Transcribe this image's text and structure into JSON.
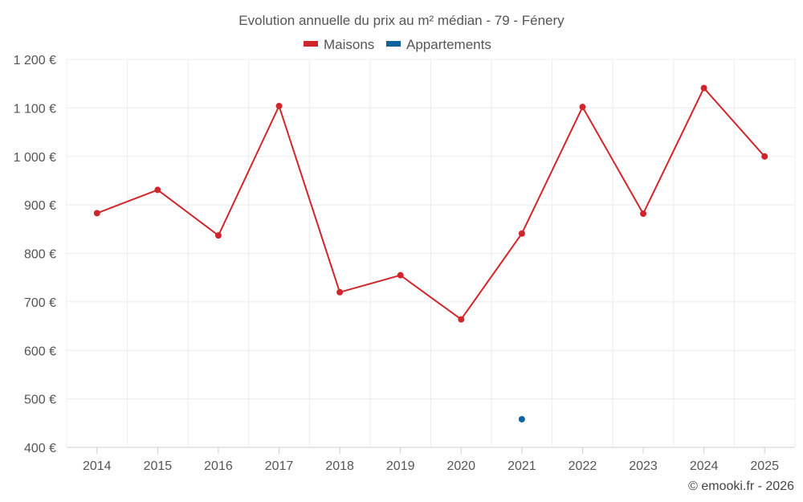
{
  "chart_data": {
    "type": "line",
    "title": "Evolution annuelle du prix au m² médian - 79 - Fénery",
    "categories": [
      "2014",
      "2015",
      "2016",
      "2017",
      "2018",
      "2019",
      "2020",
      "2021",
      "2022",
      "2023",
      "2024",
      "2025"
    ],
    "series": [
      {
        "name": "Maisons",
        "color": "#d0262b",
        "values": [
          883,
          931,
          837,
          1104,
          720,
          755,
          664,
          841,
          1102,
          882,
          1141,
          1000
        ]
      },
      {
        "name": "Appartements",
        "color": "#0f64a0",
        "values": [
          null,
          null,
          null,
          null,
          null,
          null,
          null,
          458,
          null,
          null,
          null,
          null
        ]
      }
    ],
    "y_ticks": [
      "400 €",
      "500 €",
      "600 €",
      "700 €",
      "800 €",
      "900 €",
      "1 000 €",
      "1 100 €",
      "1 200 €"
    ],
    "ylim": [
      400,
      1200
    ],
    "xlabel": "",
    "ylabel": "",
    "grid": true,
    "legend_position": "top-center"
  },
  "credit": "© emooki.fr - 2026"
}
